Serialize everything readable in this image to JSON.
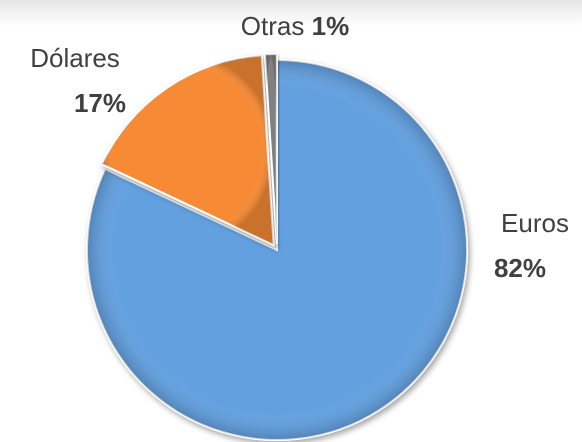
{
  "chart_data": {
    "type": "pie",
    "categories": [
      "Euros",
      "Dólares",
      "Otras"
    ],
    "values": [
      82,
      17,
      1
    ],
    "value_labels": [
      "82%",
      "17%",
      "1%"
    ],
    "colors": [
      "#62a0e0",
      "#f68a36",
      "#808080"
    ]
  }
}
